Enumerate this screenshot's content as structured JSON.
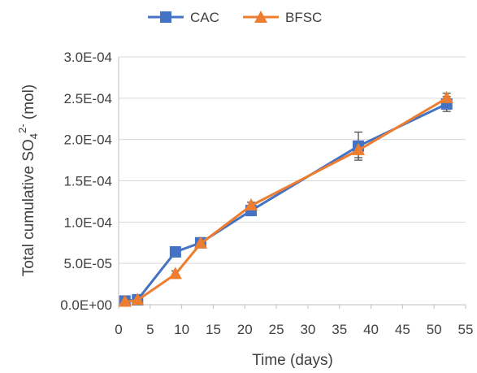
{
  "chart_data": {
    "type": "line",
    "title": "",
    "xlabel": "Time (days)",
    "ylabel": {
      "prefix": "Total cumulative SO",
      "sub": "4",
      "sup": "2-",
      "suffix": " (mol)"
    },
    "xlim": [
      0,
      55
    ],
    "ylim": [
      0,
      0.0003
    ],
    "x_ticks": [
      0,
      5,
      10,
      15,
      20,
      25,
      30,
      35,
      40,
      45,
      50,
      55
    ],
    "x_tick_labels": [
      "0",
      "5",
      "10",
      "15",
      "20",
      "25",
      "30",
      "35",
      "40",
      "45",
      "50",
      "55"
    ],
    "y_ticks": [
      0,
      5e-05,
      0.0001,
      0.00015,
      0.0002,
      0.00025,
      0.0003
    ],
    "y_tick_labels": [
      "0.0E+00",
      "5.0E-05",
      "1.0E-04",
      "1.5E-04",
      "2.0E-04",
      "2.5E-04",
      "3.0E-04"
    ],
    "grid": "horizontal",
    "legend_position": "top-center",
    "series": [
      {
        "name": "CAC",
        "color": "#4472C4",
        "marker": "square",
        "x": [
          1,
          3,
          9,
          13,
          21,
          38,
          52
        ],
        "y": [
          4.5e-06,
          6e-06,
          6.4e-05,
          7.5e-05,
          0.000114,
          0.000192,
          0.000243
        ],
        "err": [
          0,
          0,
          0,
          0,
          0,
          1.7e-05,
          9e-06
        ]
      },
      {
        "name": "BFSC",
        "color": "#ED7D31",
        "marker": "triangle",
        "x": [
          1,
          3,
          9,
          13,
          21,
          38,
          52
        ],
        "y": [
          3.5e-06,
          5.5e-06,
          3.7e-05,
          7.4e-05,
          0.00012,
          0.000187,
          0.00025
        ],
        "err": [
          0,
          0,
          4e-06,
          0,
          4e-06,
          9e-06,
          6e-06
        ]
      }
    ]
  }
}
